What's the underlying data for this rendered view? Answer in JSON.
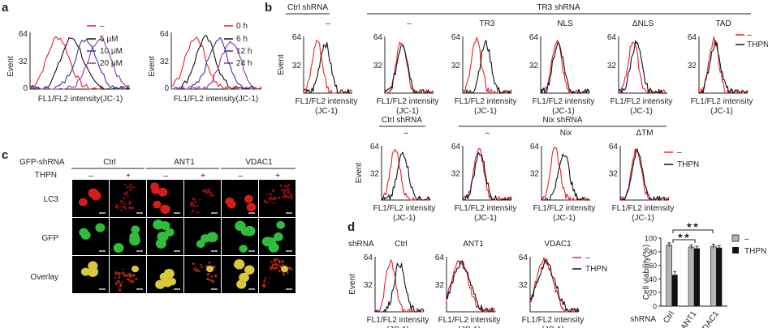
{
  "panels": {
    "a": "a",
    "b": "b",
    "c": "c",
    "d": "d"
  },
  "common": {
    "xlabel_oneline": "FL1/FL2 intensity(JC-1)",
    "xlabel_line1": "FL1/FL2 intensity",
    "xlabel_line2": "(JC-1)",
    "ylabel_event": "Event",
    "ytick_top": "64",
    "ytick_mid": "32",
    "ytick_zero": "0"
  },
  "colors": {
    "red": "#e8202a",
    "black": "#111111",
    "blue": "#2b3a9c",
    "purple": "#8a3a9c"
  },
  "panel_a": {
    "left_legend": [
      "–",
      "5 µM",
      "10 µM",
      "20 µM"
    ],
    "right_legend": [
      "0 h",
      "6 h",
      "12 h",
      "24 h"
    ]
  },
  "panel_b": {
    "row1_group_ctrl": "Ctrl shRNA",
    "row1_group_tr3": "TR3 shRNA",
    "row1_titles": [
      "–",
      "–",
      "TR3",
      "NLS",
      "ΔNLS",
      "TAD"
    ],
    "row2_group_ctrl": "Ctrl shRNA",
    "row2_group_nix": "Nix shRNA",
    "row2_titles": [
      "–",
      "–",
      "Nix",
      "ΔTM"
    ],
    "legend": [
      "–",
      "THPN"
    ]
  },
  "panel_c": {
    "row_header": "GFP-shRNA",
    "thpn_label": "THPN",
    "groups": [
      "Ctrl",
      "ANT1",
      "VDAC1"
    ],
    "signs": [
      "–",
      "+",
      "–",
      "+",
      "–",
      "+"
    ],
    "rows": [
      "LC3",
      "GFP",
      "Overlay"
    ]
  },
  "panel_d": {
    "shrna_label": "shRNA",
    "titles": [
      "Ctrl",
      "ANT1",
      "VDAC1"
    ],
    "legend": [
      "–",
      "THPN"
    ],
    "stars": [
      "★★",
      "★★"
    ]
  },
  "chart_data": [
    {
      "type": "line",
      "panel": "a-left",
      "xlabel": "FL1/FL2 intensity(JC-1)",
      "ylabel": "Event",
      "ylim": [
        0,
        64
      ],
      "series": [
        {
          "name": "–",
          "color": "#e8202a",
          "peak_position": 0.28
        },
        {
          "name": "5 µM",
          "color": "#111111",
          "peak_position": 0.42
        },
        {
          "name": "10 µM",
          "color": "#2b3a9c",
          "peak_position": 0.56
        },
        {
          "name": "20 µM",
          "color": "#8a3a9c",
          "peak_position": 0.7
        }
      ]
    },
    {
      "type": "line",
      "panel": "a-right",
      "xlabel": "FL1/FL2 intensity(JC-1)",
      "ylabel": "Event",
      "ylim": [
        0,
        64
      ],
      "series": [
        {
          "name": "0 h",
          "color": "#e8202a",
          "peak_position": 0.27
        },
        {
          "name": "6 h",
          "color": "#111111",
          "peak_position": 0.38
        },
        {
          "name": "12 h",
          "color": "#2b3a9c",
          "peak_position": 0.52
        },
        {
          "name": "24 h",
          "color": "#8a3a9c",
          "peak_position": 0.66
        }
      ]
    },
    {
      "type": "bar",
      "panel": "d-viability",
      "ylabel": "Cell viability(%)",
      "xlabel": "shRNA",
      "ylim": [
        0,
        100
      ],
      "yticks": [
        0,
        20,
        40,
        60,
        80,
        100
      ],
      "categories": [
        "Ctrl",
        "ANT1",
        "VDAC1"
      ],
      "series": [
        {
          "name": "–",
          "color": "#b3b3b3",
          "values": [
            90,
            87,
            88
          ],
          "errors": [
            3,
            3,
            3
          ]
        },
        {
          "name": "THPN",
          "color": "#111111",
          "values": [
            46,
            85,
            86
          ],
          "errors": [
            5,
            3,
            3
          ]
        }
      ]
    }
  ]
}
